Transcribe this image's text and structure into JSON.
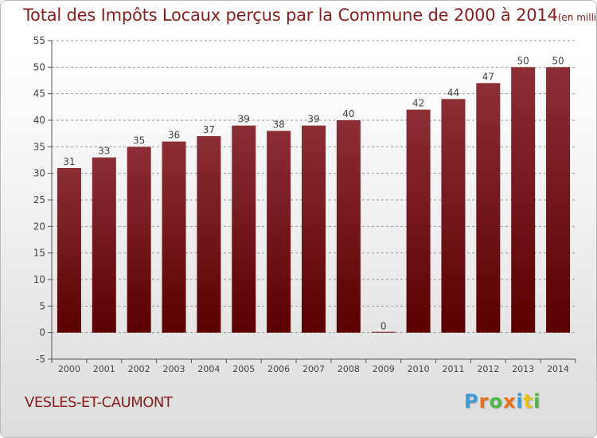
{
  "title": "Total des Impôts Locaux perçus par la Commune de 2000 à 2014",
  "title_unit": "(en milliers d'€)",
  "commune": "VESLES-ET-CAUMONT",
  "logo": {
    "letters": [
      "P",
      "r",
      "o",
      "x",
      "i",
      "t",
      "i"
    ],
    "colors": [
      "#3a9bd6",
      "#e8711c",
      "#4db848",
      "#e8711c",
      "#3a9bd6",
      "#e8c21c",
      "#4db848"
    ]
  },
  "colors": {
    "title": "#8a1d1d",
    "bar_top": "#8c2e35",
    "bar_bottom": "#5a0000",
    "axis": "#555555",
    "grid": "#9a9a9a"
  },
  "chart_data": {
    "type": "bar",
    "categories": [
      "2000",
      "2001",
      "2002",
      "2003",
      "2004",
      "2005",
      "2006",
      "2007",
      "2008",
      "2009",
      "2010",
      "2011",
      "2012",
      "2013",
      "2014"
    ],
    "values": [
      31,
      33,
      35,
      36,
      37,
      39,
      38,
      39,
      40,
      0,
      42,
      44,
      47,
      50,
      50
    ],
    "data_labels": [
      "31",
      "33",
      "35",
      "36",
      "37",
      "39",
      "38",
      "39",
      "40",
      "0",
      "42",
      "44",
      "47",
      "50",
      "50"
    ],
    "yticks": [
      -5,
      0,
      5,
      10,
      15,
      20,
      25,
      30,
      35,
      40,
      45,
      50,
      55
    ],
    "ylim": [
      -5,
      55
    ],
    "grid": true,
    "title": "Total des Impôts Locaux perçus par la Commune de 2000 à 2014",
    "xlabel": "",
    "ylabel": ""
  }
}
